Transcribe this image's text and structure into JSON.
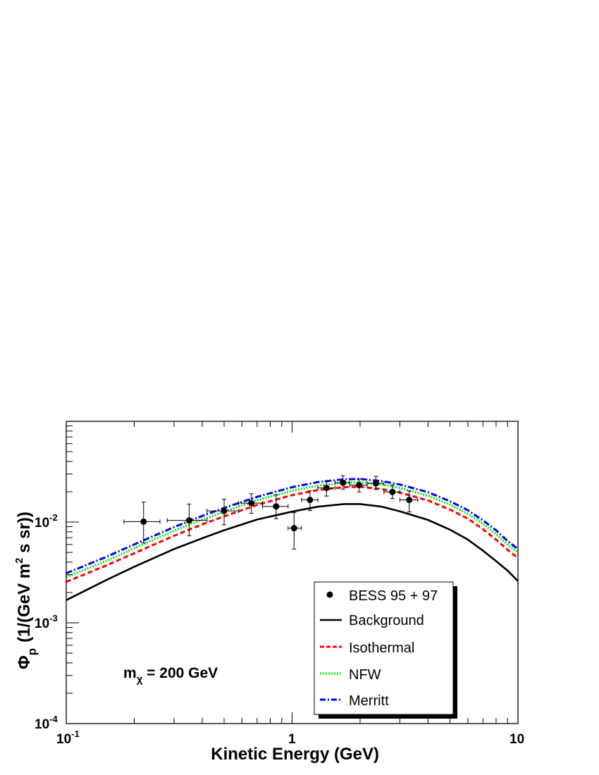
{
  "chart_data": {
    "type": "line",
    "xlabel": "Kinetic Energy (GeV)",
    "ylabel": {
      "phi": "Φ",
      "sub": "p",
      "open": "(1/(GeV m",
      "sup": "2",
      "close": " s sr))"
    },
    "x_scale": "log",
    "y_scale": "log",
    "xlim": [
      0.1,
      10
    ],
    "ylim": [
      0.0001,
      0.1
    ],
    "x_tick_labels": [
      {
        "value": 0.1,
        "base": "10",
        "exp": "-1"
      },
      {
        "value": 1,
        "base": "1",
        "exp": ""
      },
      {
        "value": 10,
        "base": "10",
        "exp": ""
      }
    ],
    "y_tick_labels": [
      {
        "value": 0.0001,
        "base": "10",
        "exp": "-4"
      },
      {
        "value": 0.001,
        "base": "10",
        "exp": "-3"
      },
      {
        "value": 0.01,
        "base": "10",
        "exp": "-2"
      }
    ],
    "grid": false,
    "legend_position": "bottom-right",
    "annotation": {
      "prefix": "m",
      "sub": "χ",
      "text": " = 200 GeV"
    },
    "series": [
      {
        "name": "BESS 95 + 97",
        "kind": "points",
        "color": "#000000",
        "points": [
          {
            "x": 0.22,
            "y": 0.0101,
            "xerr": [
              0.18,
              0.26
            ],
            "yerr": [
              0.0062,
              0.0158
            ]
          },
          {
            "x": 0.35,
            "y": 0.0104,
            "xerr": [
              0.28,
              0.42
            ],
            "yerr": [
              0.0073,
              0.0151
            ]
          },
          {
            "x": 0.5,
            "y": 0.0129,
            "xerr": [
              0.42,
              0.58
            ],
            "yerr": [
              0.0094,
              0.0168
            ]
          },
          {
            "x": 0.66,
            "y": 0.0154,
            "xerr": [
              0.58,
              0.74
            ],
            "yerr": [
              0.0122,
              0.0191
            ]
          },
          {
            "x": 0.85,
            "y": 0.0143,
            "xerr": [
              0.74,
              0.96
            ],
            "yerr": [
              0.0108,
              0.0186
            ]
          },
          {
            "x": 1.02,
            "y": 0.0087,
            "xerr": [
              0.96,
              1.1
            ],
            "yerr": [
              0.0054,
              0.0124
            ]
          },
          {
            "x": 1.2,
            "y": 0.0166,
            "xerr": [
              1.1,
              1.3
            ],
            "yerr": [
              0.013,
              0.0204
            ]
          },
          {
            "x": 1.42,
            "y": 0.0218,
            "xerr": [
              1.3,
              1.55
            ],
            "yerr": [
              0.0181,
              0.0254
            ]
          },
          {
            "x": 1.68,
            "y": 0.0246,
            "xerr": [
              1.55,
              1.8
            ],
            "yerr": [
              0.0212,
              0.0288
            ]
          },
          {
            "x": 1.98,
            "y": 0.0233,
            "xerr": [
              1.8,
              2.15
            ],
            "yerr": [
              0.0199,
              0.0268
            ]
          },
          {
            "x": 2.35,
            "y": 0.0242,
            "xerr": [
              2.15,
              2.55
            ],
            "yerr": [
              0.0211,
              0.0284
            ]
          },
          {
            "x": 2.78,
            "y": 0.0199,
            "xerr": [
              2.55,
              3.0
            ],
            "yerr": [
              0.0171,
              0.0234
            ]
          },
          {
            "x": 3.3,
            "y": 0.0166,
            "xerr": [
              3.0,
              3.6
            ],
            "yerr": [
              0.0126,
              0.0204
            ]
          }
        ]
      },
      {
        "name": "Background",
        "kind": "line",
        "style": "solid",
        "color": "#000000",
        "points": [
          {
            "x": 0.1,
            "y": 0.00168
          },
          {
            "x": 0.15,
            "y": 0.00265
          },
          {
            "x": 0.2,
            "y": 0.0036
          },
          {
            "x": 0.3,
            "y": 0.0054
          },
          {
            "x": 0.4,
            "y": 0.0069
          },
          {
            "x": 0.5,
            "y": 0.0083
          },
          {
            "x": 0.7,
            "y": 0.0106
          },
          {
            "x": 1.0,
            "y": 0.0127
          },
          {
            "x": 1.3,
            "y": 0.0142
          },
          {
            "x": 1.7,
            "y": 0.0151
          },
          {
            "x": 2.0,
            "y": 0.0151
          },
          {
            "x": 2.5,
            "y": 0.0142
          },
          {
            "x": 3.0,
            "y": 0.0128
          },
          {
            "x": 4.0,
            "y": 0.0105
          },
          {
            "x": 5.0,
            "y": 0.0084
          },
          {
            "x": 6.0,
            "y": 0.0067
          },
          {
            "x": 7.0,
            "y": 0.0052
          },
          {
            "x": 8.0,
            "y": 0.0041
          },
          {
            "x": 9.0,
            "y": 0.0033
          },
          {
            "x": 10.0,
            "y": 0.0026
          }
        ]
      },
      {
        "name": "Isothermal",
        "kind": "line",
        "style": "dashed",
        "color": "#ff0000",
        "points": [
          {
            "x": 0.1,
            "y": 0.00255
          },
          {
            "x": 0.15,
            "y": 0.0037
          },
          {
            "x": 0.2,
            "y": 0.0049
          },
          {
            "x": 0.3,
            "y": 0.0073
          },
          {
            "x": 0.4,
            "y": 0.0095
          },
          {
            "x": 0.5,
            "y": 0.0114
          },
          {
            "x": 0.7,
            "y": 0.0148
          },
          {
            "x": 1.0,
            "y": 0.0185
          },
          {
            "x": 1.3,
            "y": 0.0208
          },
          {
            "x": 1.7,
            "y": 0.0222
          },
          {
            "x": 2.0,
            "y": 0.0224
          },
          {
            "x": 2.5,
            "y": 0.0212
          },
          {
            "x": 3.0,
            "y": 0.0196
          },
          {
            "x": 4.0,
            "y": 0.0164
          },
          {
            "x": 5.0,
            "y": 0.0133
          },
          {
            "x": 6.0,
            "y": 0.0108
          },
          {
            "x": 7.0,
            "y": 0.0085
          },
          {
            "x": 8.0,
            "y": 0.0067
          },
          {
            "x": 9.0,
            "y": 0.0053
          },
          {
            "x": 10.0,
            "y": 0.0044
          }
        ]
      },
      {
        "name": "NFW",
        "kind": "line",
        "style": "dotted",
        "color": "#00ee00",
        "points": [
          {
            "x": 0.1,
            "y": 0.00285
          },
          {
            "x": 0.15,
            "y": 0.0041
          },
          {
            "x": 0.2,
            "y": 0.0055
          },
          {
            "x": 0.3,
            "y": 0.0082
          },
          {
            "x": 0.4,
            "y": 0.0106
          },
          {
            "x": 0.5,
            "y": 0.0127
          },
          {
            "x": 0.7,
            "y": 0.0165
          },
          {
            "x": 1.0,
            "y": 0.0205
          },
          {
            "x": 1.3,
            "y": 0.023
          },
          {
            "x": 1.7,
            "y": 0.0246
          },
          {
            "x": 2.0,
            "y": 0.0248
          },
          {
            "x": 2.5,
            "y": 0.0236
          },
          {
            "x": 3.0,
            "y": 0.0218
          },
          {
            "x": 4.0,
            "y": 0.0183
          },
          {
            "x": 5.0,
            "y": 0.0149
          },
          {
            "x": 6.0,
            "y": 0.0121
          },
          {
            "x": 7.0,
            "y": 0.0096
          },
          {
            "x": 8.0,
            "y": 0.0076
          },
          {
            "x": 9.0,
            "y": 0.006
          },
          {
            "x": 10.0,
            "y": 0.005
          }
        ]
      },
      {
        "name": "Merritt",
        "kind": "line",
        "style": "dashdot",
        "color": "#0000ff",
        "points": [
          {
            "x": 0.1,
            "y": 0.0031
          },
          {
            "x": 0.15,
            "y": 0.0045
          },
          {
            "x": 0.2,
            "y": 0.006
          },
          {
            "x": 0.3,
            "y": 0.0089
          },
          {
            "x": 0.4,
            "y": 0.0115
          },
          {
            "x": 0.5,
            "y": 0.0138
          },
          {
            "x": 0.7,
            "y": 0.0178
          },
          {
            "x": 1.0,
            "y": 0.0222
          },
          {
            "x": 1.3,
            "y": 0.0249
          },
          {
            "x": 1.7,
            "y": 0.0266
          },
          {
            "x": 2.0,
            "y": 0.0268
          },
          {
            "x": 2.5,
            "y": 0.0255
          },
          {
            "x": 3.0,
            "y": 0.0236
          },
          {
            "x": 4.0,
            "y": 0.0198
          },
          {
            "x": 5.0,
            "y": 0.0161
          },
          {
            "x": 6.0,
            "y": 0.0131
          },
          {
            "x": 7.0,
            "y": 0.0104
          },
          {
            "x": 8.0,
            "y": 0.0083
          },
          {
            "x": 9.0,
            "y": 0.0065
          },
          {
            "x": 10.0,
            "y": 0.0054
          }
        ]
      }
    ]
  }
}
